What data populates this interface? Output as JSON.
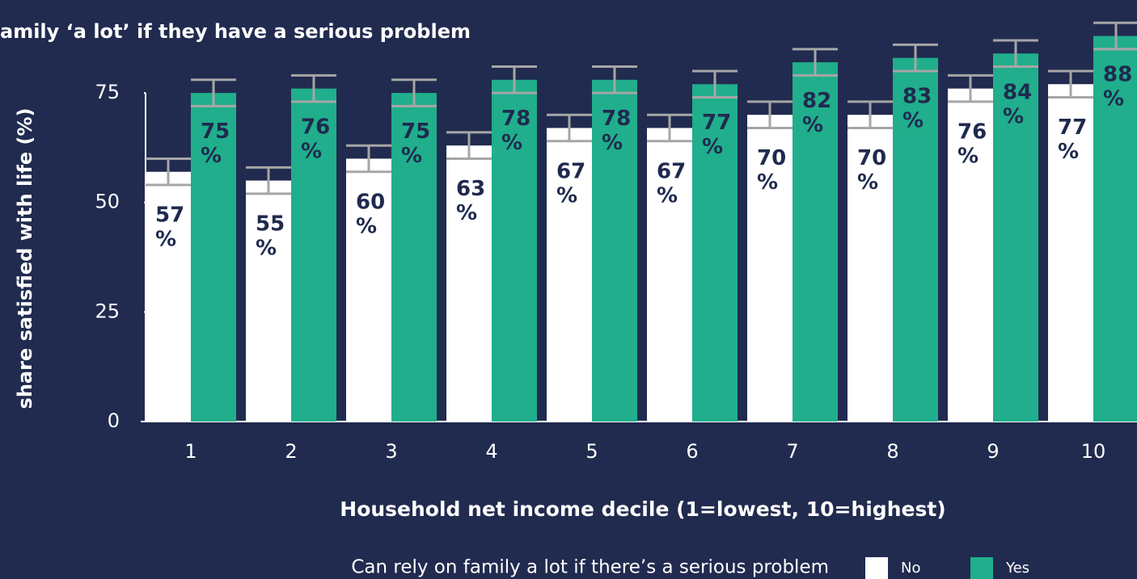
{
  "chart_data": {
    "type": "bar",
    "title": "amily ‘a lot’ if they have a serious problem",
    "y_label": "share satisfied with life (%)",
    "x_label": "Household net income decile (1=lowest, 10=highest)",
    "legend_title": "Can rely on family a lot if there’s a serious problem",
    "categories": [
      "1",
      "2",
      "3",
      "4",
      "5",
      "6",
      "7",
      "8",
      "9",
      "10"
    ],
    "series": [
      {
        "name": "No",
        "color": "#ffffff",
        "values": [
          57,
          55,
          60,
          63,
          67,
          67,
          70,
          70,
          76,
          77
        ],
        "errors": [
          3,
          3,
          3,
          3,
          3,
          3,
          3,
          3,
          3,
          3
        ],
        "value_labels": [
          "57 %",
          "55 %",
          "60 %",
          "63 %",
          "67 %",
          "67 %",
          "70 %",
          "70 %",
          "76 %",
          "77 %"
        ]
      },
      {
        "name": "Yes",
        "color": "#20ae8c",
        "values": [
          75,
          76,
          75,
          78,
          78,
          77,
          82,
          83,
          84,
          88
        ],
        "errors": [
          3,
          3,
          3,
          3,
          3,
          3,
          3,
          3,
          3,
          3
        ],
        "value_labels": [
          "75 %",
          "76 %",
          "75 %",
          "78 %",
          "78 %",
          "77 %",
          "82 %",
          "83 %",
          "84 %",
          "88 %"
        ]
      }
    ],
    "ylim": [
      0,
      94
    ],
    "yticks": [
      0,
      25,
      50,
      75
    ],
    "error_color": "#a6a6a6",
    "label_color": "#1f2a4e",
    "background": "#212b4f"
  }
}
